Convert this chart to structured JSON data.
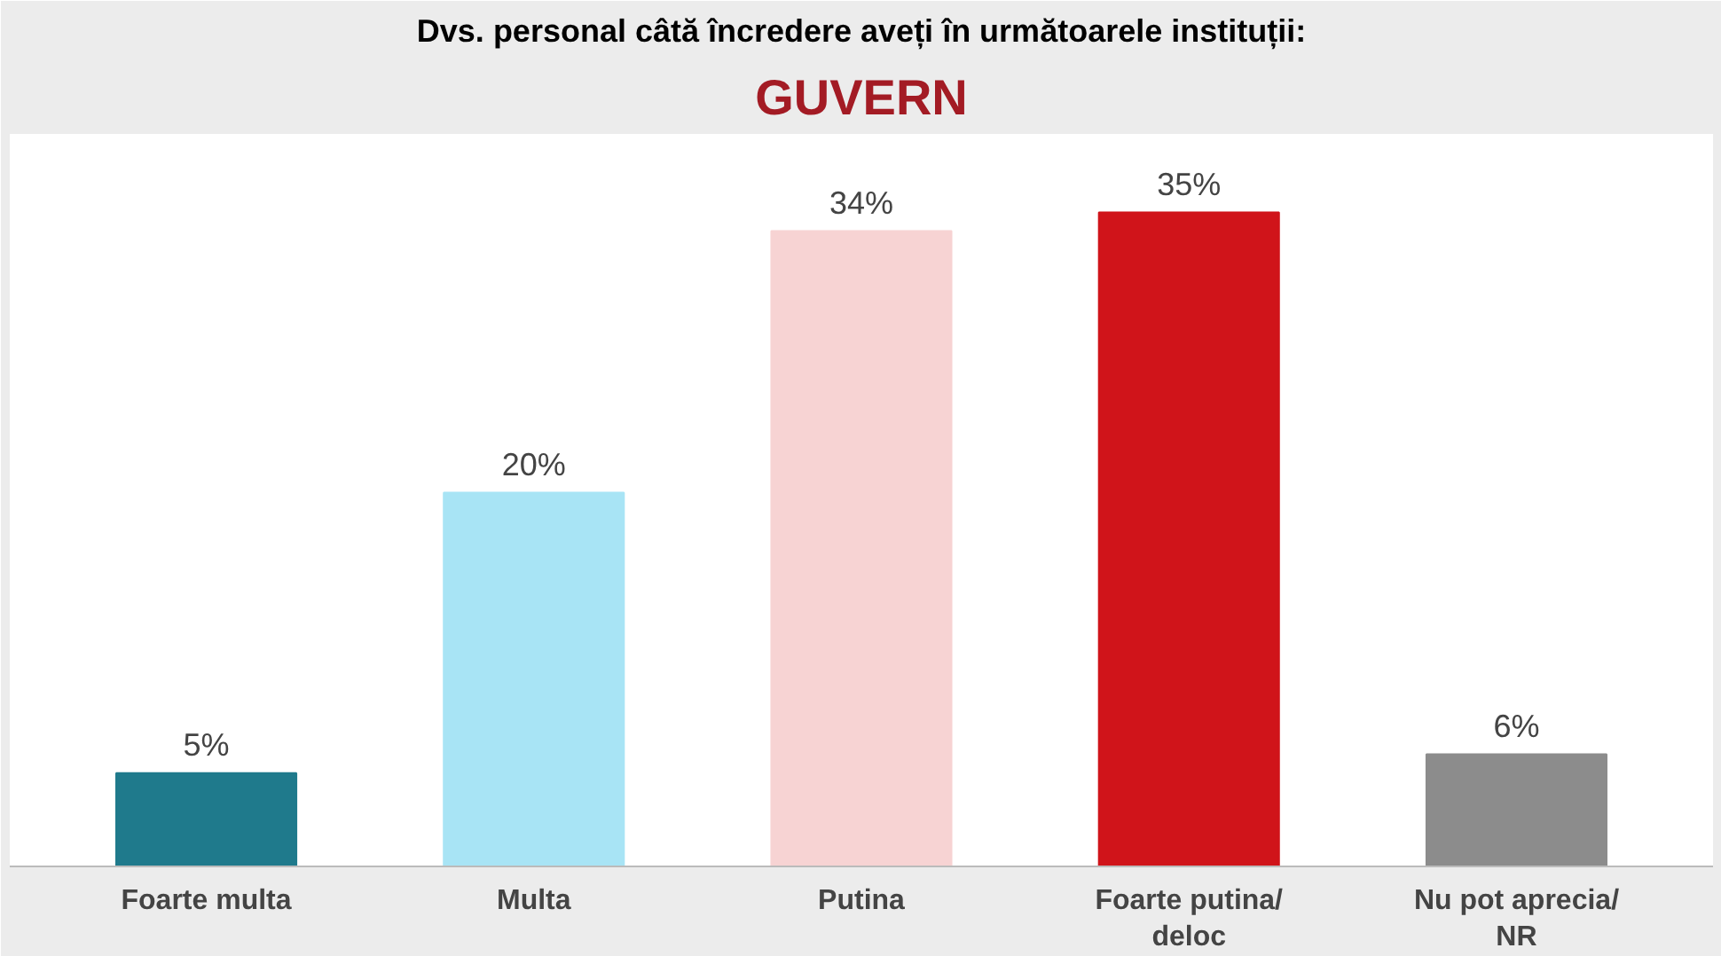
{
  "chart_data": {
    "type": "bar",
    "title": "Dvs. personal câtă încredere aveți în următoarele instituții:",
    "subtitle": "GUVERN",
    "categories": [
      "Foarte multa",
      "Multa",
      "Putina",
      "Foarte putina/\ndeloc",
      "Nu pot aprecia/\nNR"
    ],
    "values": [
      5,
      20,
      34,
      35,
      6
    ],
    "colors": [
      "#1f7a8c",
      "#a8e4f5",
      "#f7d3d3",
      "#d0141a",
      "#8c8c8c"
    ],
    "value_labels": [
      "5%",
      "20%",
      "34%",
      "35%",
      "6%"
    ],
    "grid": false
  }
}
